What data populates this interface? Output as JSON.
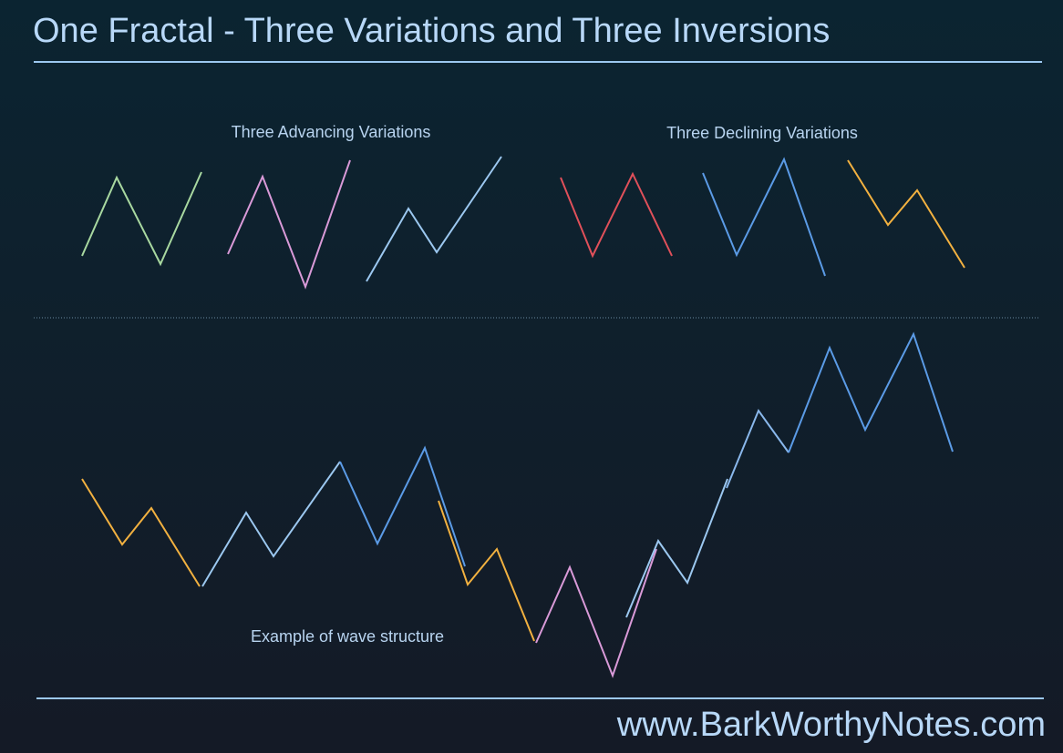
{
  "header": {
    "title": "One Fractal - Three Variations and Three Inversions"
  },
  "sections": {
    "advancing": {
      "label": "Three Advancing Variations"
    },
    "declining": {
      "label": "Three Declining Variations"
    }
  },
  "example": {
    "label": "Example of wave structure"
  },
  "footer": {
    "website": "www.BarkWorthyNotes.com"
  }
}
